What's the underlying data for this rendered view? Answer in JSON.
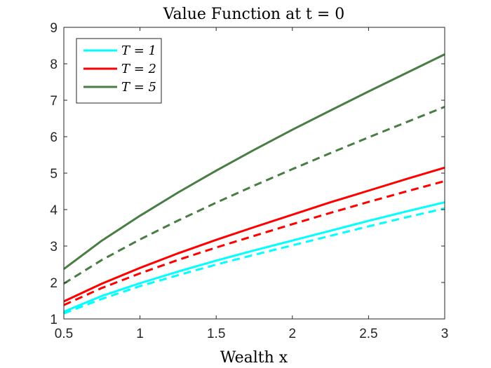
{
  "chart_data": {
    "type": "line",
    "title": "Value Function at t = 0",
    "xlabel": "Wealth x",
    "ylabel": "",
    "xlim": [
      0.5,
      3
    ],
    "ylim": [
      1,
      9
    ],
    "xticks": [
      0.5,
      1,
      1.5,
      2,
      2.5,
      3
    ],
    "xtick_labels": [
      "0.5",
      "1",
      "1.5",
      "2",
      "2.5",
      "3"
    ],
    "yticks": [
      1,
      2,
      3,
      4,
      5,
      6,
      7,
      8,
      9
    ],
    "ytick_labels": [
      "1",
      "2",
      "3",
      "4",
      "5",
      "6",
      "7",
      "8",
      "9"
    ],
    "grid": false,
    "legend_position": "top-left",
    "x": [
      0.5,
      0.75,
      1,
      1.25,
      1.5,
      1.75,
      2,
      2.25,
      2.5,
      2.75,
      3
    ],
    "series": [
      {
        "name": "T = 1",
        "color": "#00FFFF",
        "style": "solid",
        "values": [
          1.2,
          1.63,
          1.98,
          2.3,
          2.6,
          2.88,
          3.15,
          3.42,
          3.69,
          3.95,
          4.2
        ]
      },
      {
        "name": "",
        "color": "#00FFFF",
        "style": "dashed",
        "values": [
          1.15,
          1.55,
          1.9,
          2.2,
          2.49,
          2.76,
          3.02,
          3.28,
          3.54,
          3.79,
          4.03
        ]
      },
      {
        "name": "T = 2",
        "color": "#FF0000",
        "style": "solid",
        "values": [
          1.48,
          1.97,
          2.4,
          2.8,
          3.17,
          3.52,
          3.86,
          4.2,
          4.52,
          4.84,
          5.15
        ]
      },
      {
        "name": "",
        "color": "#FF0000",
        "style": "dashed",
        "values": [
          1.38,
          1.85,
          2.25,
          2.62,
          2.96,
          3.28,
          3.6,
          3.91,
          4.21,
          4.5,
          4.78
        ]
      },
      {
        "name": "T = 5",
        "color": "#4A7D45",
        "style": "solid",
        "values": [
          2.37,
          3.15,
          3.83,
          4.47,
          5.07,
          5.64,
          6.19,
          6.72,
          7.24,
          7.75,
          8.26
        ]
      },
      {
        "name": "",
        "color": "#4A7D45",
        "style": "dashed",
        "values": [
          1.97,
          2.62,
          3.18,
          3.7,
          4.19,
          4.66,
          5.11,
          5.55,
          5.98,
          6.4,
          6.82
        ]
      }
    ]
  }
}
